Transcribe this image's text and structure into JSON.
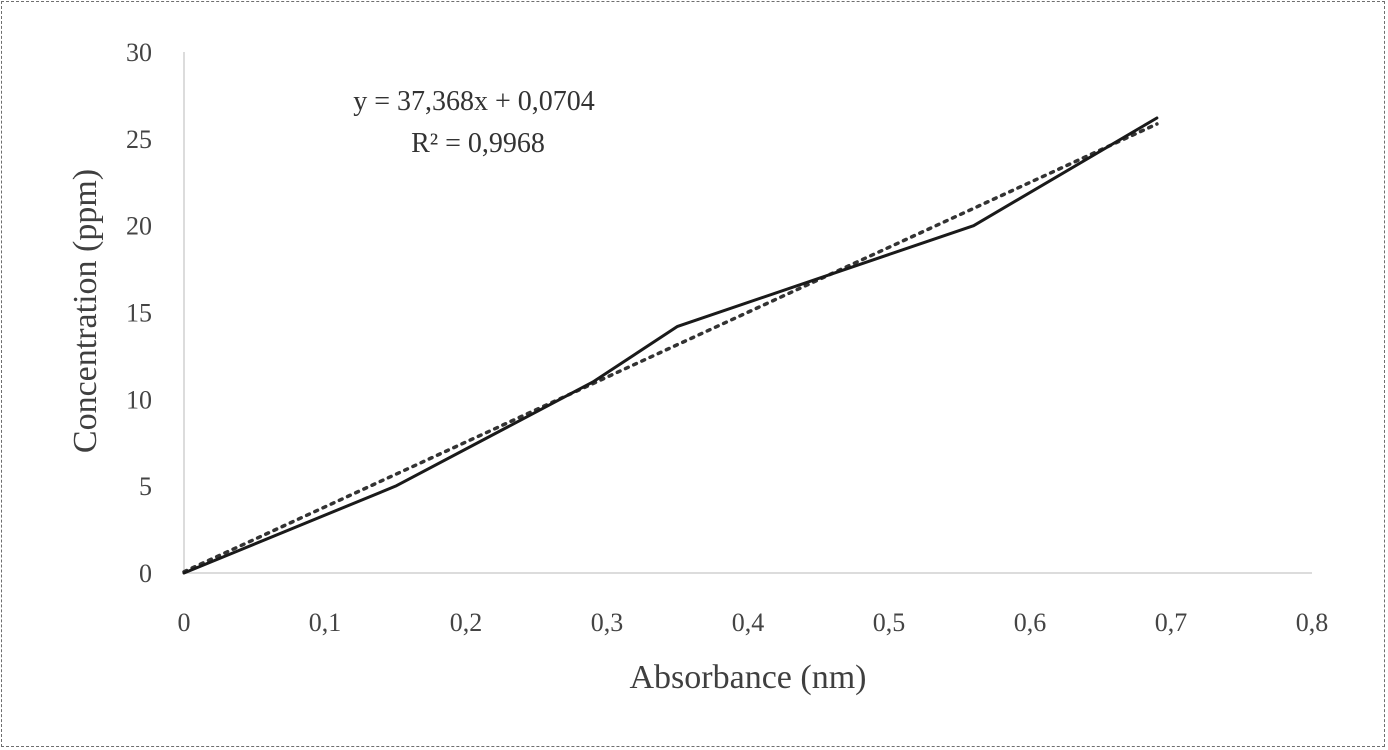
{
  "chart_data": {
    "type": "line",
    "title": "",
    "xlabel": "Absorbance (nm)",
    "ylabel": "Concentration (ppm)",
    "xlim": [
      0,
      0.8
    ],
    "ylim": [
      0,
      30
    ],
    "x_ticks": [
      0,
      0.1,
      0.2,
      0.3,
      0.4,
      0.5,
      0.6,
      0.7,
      0.8
    ],
    "x_tick_labels": [
      "0",
      "0,1",
      "0,2",
      "0,3",
      "0,4",
      "0,5",
      "0,6",
      "0,7",
      "0,8"
    ],
    "y_ticks": [
      0,
      5,
      10,
      15,
      20,
      25,
      30
    ],
    "y_tick_labels": [
      "0",
      "5",
      "10",
      "15",
      "20",
      "25",
      "30"
    ],
    "grid": false,
    "legend": "none",
    "series": [
      {
        "x": [
          0,
          0.15,
          0.29,
          0.35,
          0.56,
          0.69
        ],
        "y": [
          0,
          5,
          11,
          14.2,
          20,
          26.2
        ],
        "color": "#1a1a1a",
        "line_style": "solid"
      }
    ],
    "trendline": {
      "slope": 37.368,
      "intercept": 0.0704,
      "x_range": [
        0,
        0.69
      ],
      "color": "#333333",
      "line_style": "dotted"
    },
    "annotations": {
      "equation": "y = 37,368x + 0,0704",
      "r_squared": "R² = 0,9968"
    }
  }
}
